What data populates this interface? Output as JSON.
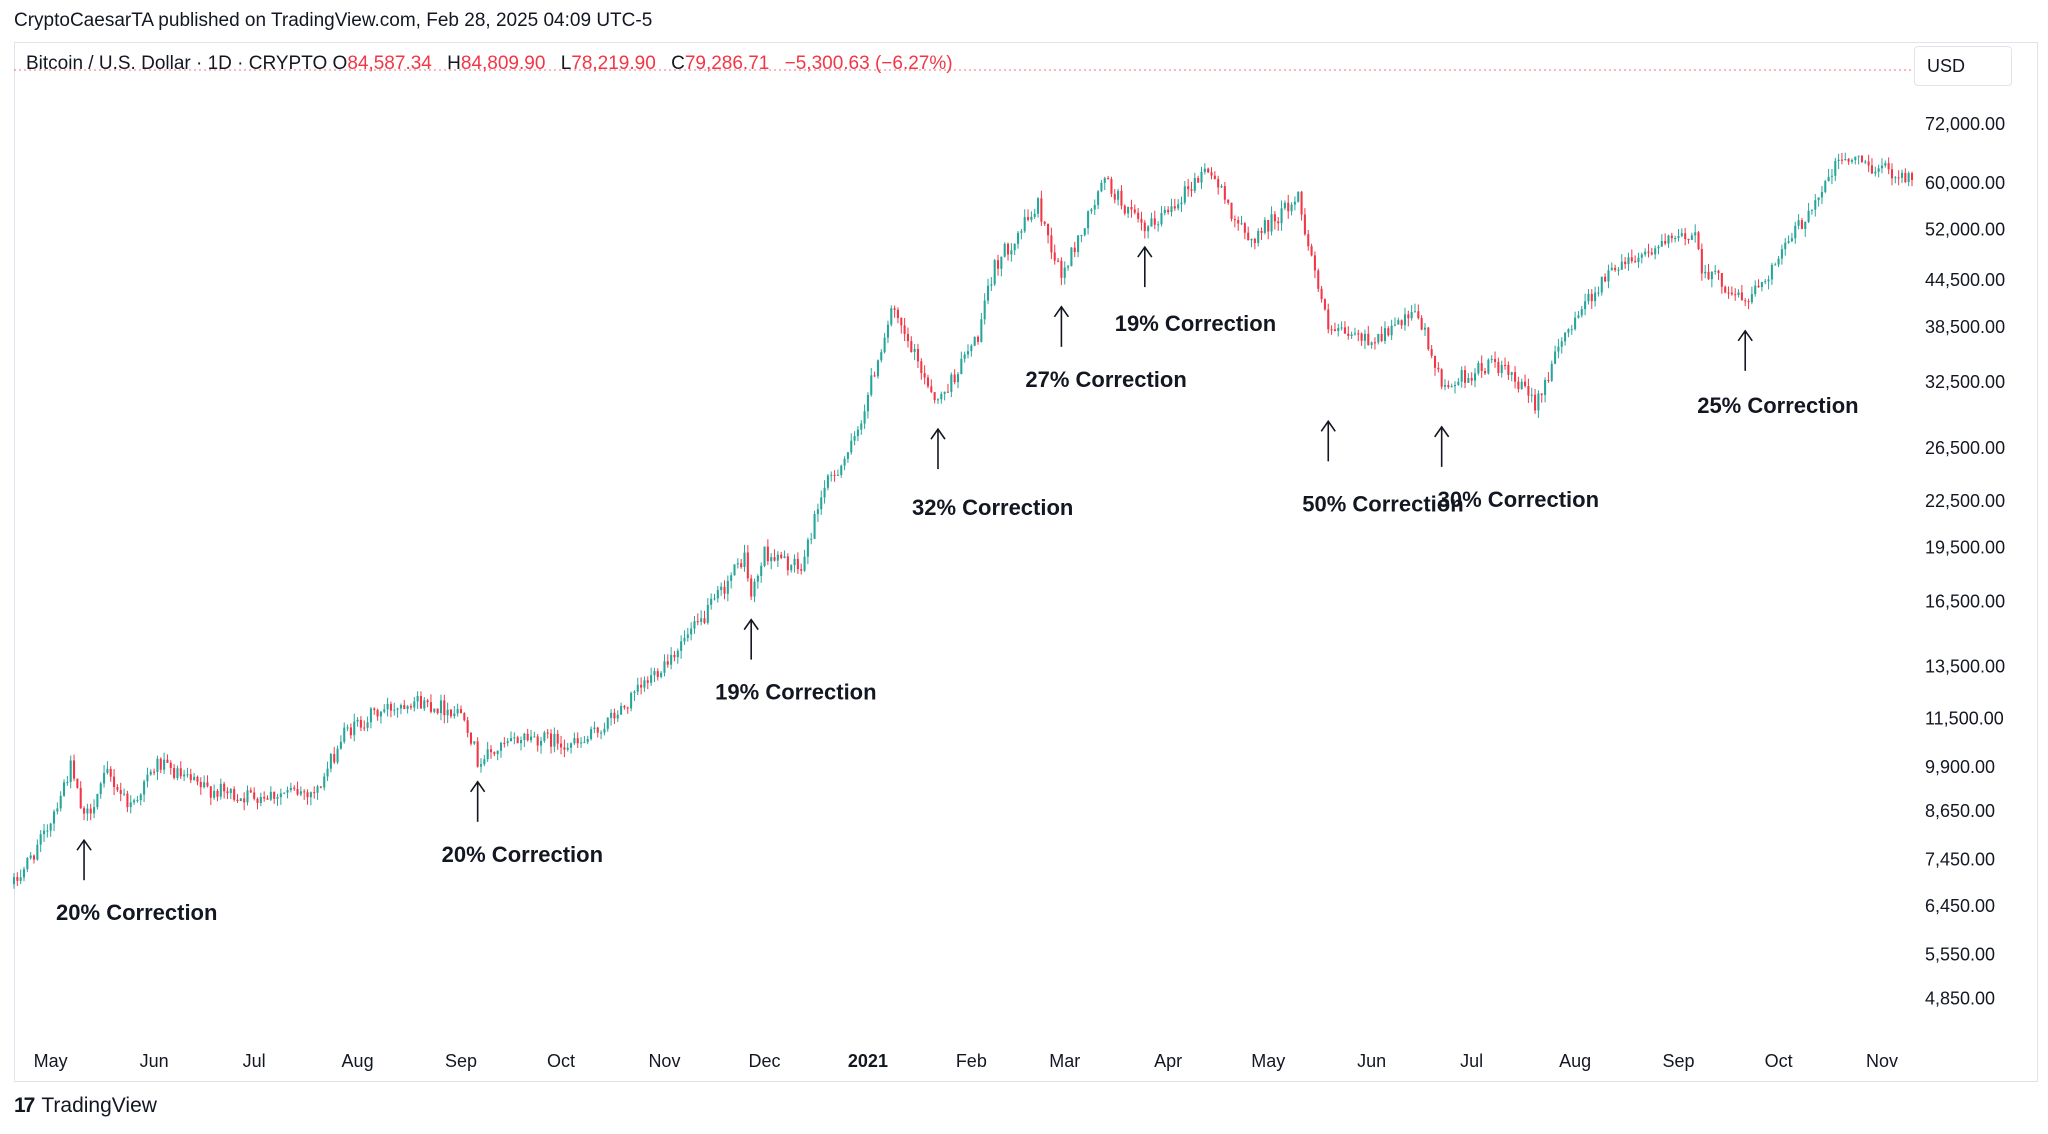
{
  "header": {
    "publisher": "CryptoCaesarTA published on TradingView.com, Feb 28, 2025 04:09 UTC-5",
    "symbol": "Bitcoin / U.S. Dollar · 1D · CRYPTO",
    "open_label": "O",
    "open": "84,587.34",
    "high_label": "H",
    "high": "84,809.90",
    "low_label": "L",
    "low": "78,219.90",
    "close_label": "C",
    "close": "79,286.71",
    "change": "−5,300.63 (−6.27%)",
    "currency": "USD"
  },
  "footer": {
    "logo_mark": "17",
    "logo_text": "TradingView"
  },
  "colors": {
    "up": "#26a69a",
    "down": "#f23645",
    "text": "#131722",
    "axis_text": "#131722",
    "border": "#e0e3eb"
  },
  "chart_data": {
    "type": "candlestick",
    "y_scale": "log",
    "ylim": [
      4400,
      80000
    ],
    "y_ticks": [
      {
        "value": 72000,
        "label": "72,000.00"
      },
      {
        "value": 60000,
        "label": "60,000.00"
      },
      {
        "value": 52000,
        "label": "52,000.00"
      },
      {
        "value": 44500,
        "label": "44,500.00"
      },
      {
        "value": 38500,
        "label": "38,500.00"
      },
      {
        "value": 32500,
        "label": "32,500.00"
      },
      {
        "value": 26500,
        "label": "26,500.00"
      },
      {
        "value": 22500,
        "label": "22,500.00"
      },
      {
        "value": 19500,
        "label": "19,500.00"
      },
      {
        "value": 16500,
        "label": "16,500.00"
      },
      {
        "value": 13500,
        "label": "13,500.00"
      },
      {
        "value": 11500,
        "label": "11,500.00"
      },
      {
        "value": 9900,
        "label": "9,900.00"
      },
      {
        "value": 8650,
        "label": "8,650.00"
      },
      {
        "value": 7450,
        "label": "7,450.00"
      },
      {
        "value": 6450,
        "label": "6,450.00"
      },
      {
        "value": 5550,
        "label": "5,550.00"
      },
      {
        "value": 4850,
        "label": "4,850.00"
      }
    ],
    "x_start": "2020-04-20",
    "x_end": "2021-11-10",
    "x_ticks": [
      {
        "date": "2020-05-01",
        "label": "May",
        "bold": false
      },
      {
        "date": "2020-06-01",
        "label": "Jun",
        "bold": false
      },
      {
        "date": "2020-07-01",
        "label": "Jul",
        "bold": false
      },
      {
        "date": "2020-08-01",
        "label": "Aug",
        "bold": false
      },
      {
        "date": "2020-09-01",
        "label": "Sep",
        "bold": false
      },
      {
        "date": "2020-10-01",
        "label": "Oct",
        "bold": false
      },
      {
        "date": "2020-11-01",
        "label": "Nov",
        "bold": false
      },
      {
        "date": "2020-12-01",
        "label": "Dec",
        "bold": false
      },
      {
        "date": "2021-01-01",
        "label": "2021",
        "bold": true
      },
      {
        "date": "2021-02-01",
        "label": "Feb",
        "bold": false
      },
      {
        "date": "2021-03-01",
        "label": "Mar",
        "bold": false
      },
      {
        "date": "2021-04-01",
        "label": "Apr",
        "bold": false
      },
      {
        "date": "2021-05-01",
        "label": "May",
        "bold": false
      },
      {
        "date": "2021-06-01",
        "label": "Jun",
        "bold": false
      },
      {
        "date": "2021-07-01",
        "label": "Jul",
        "bold": false
      },
      {
        "date": "2021-08-01",
        "label": "Aug",
        "bold": false
      },
      {
        "date": "2021-09-01",
        "label": "Sep",
        "bold": false
      },
      {
        "date": "2021-10-01",
        "label": "Oct",
        "bold": false
      },
      {
        "date": "2021-11-01",
        "label": "Nov",
        "bold": false
      }
    ],
    "price_path": [
      {
        "date": "2020-04-20",
        "price": 6900
      },
      {
        "date": "2020-04-29",
        "price": 8000
      },
      {
        "date": "2020-05-07",
        "price": 9900
      },
      {
        "date": "2020-05-11",
        "price": 8400
      },
      {
        "date": "2020-05-18",
        "price": 9700
      },
      {
        "date": "2020-05-25",
        "price": 8800
      },
      {
        "date": "2020-06-02",
        "price": 10000
      },
      {
        "date": "2020-06-15",
        "price": 9300
      },
      {
        "date": "2020-06-27",
        "price": 9050
      },
      {
        "date": "2020-07-20",
        "price": 9200
      },
      {
        "date": "2020-07-28",
        "price": 11000
      },
      {
        "date": "2020-08-05",
        "price": 11600
      },
      {
        "date": "2020-08-17",
        "price": 12200
      },
      {
        "date": "2020-09-02",
        "price": 11700
      },
      {
        "date": "2020-09-06",
        "price": 10100
      },
      {
        "date": "2020-09-20",
        "price": 10900
      },
      {
        "date": "2020-10-07",
        "price": 10600
      },
      {
        "date": "2020-10-20",
        "price": 11900
      },
      {
        "date": "2020-11-01",
        "price": 13700
      },
      {
        "date": "2020-11-12",
        "price": 15500
      },
      {
        "date": "2020-11-25",
        "price": 19000
      },
      {
        "date": "2020-11-27",
        "price": 16700
      },
      {
        "date": "2020-12-01",
        "price": 19200
      },
      {
        "date": "2020-12-12",
        "price": 18200
      },
      {
        "date": "2020-12-18",
        "price": 23000
      },
      {
        "date": "2020-12-28",
        "price": 27000
      },
      {
        "date": "2021-01-08",
        "price": 40500
      },
      {
        "date": "2021-01-22",
        "price": 30500
      },
      {
        "date": "2021-02-03",
        "price": 37500
      },
      {
        "date": "2021-02-08",
        "price": 46500
      },
      {
        "date": "2021-02-21",
        "price": 56000
      },
      {
        "date": "2021-02-28",
        "price": 45000
      },
      {
        "date": "2021-03-13",
        "price": 60500
      },
      {
        "date": "2021-03-25",
        "price": 51500
      },
      {
        "date": "2021-04-13",
        "price": 63000
      },
      {
        "date": "2021-04-25",
        "price": 50000
      },
      {
        "date": "2021-05-10",
        "price": 57500
      },
      {
        "date": "2021-05-19",
        "price": 38000
      },
      {
        "date": "2021-06-01",
        "price": 37000
      },
      {
        "date": "2021-06-15",
        "price": 40000
      },
      {
        "date": "2021-06-22",
        "price": 32000
      },
      {
        "date": "2021-07-08",
        "price": 34500
      },
      {
        "date": "2021-07-20",
        "price": 30500
      },
      {
        "date": "2021-08-01",
        "price": 40000
      },
      {
        "date": "2021-08-14",
        "price": 47000
      },
      {
        "date": "2021-09-06",
        "price": 51500
      },
      {
        "date": "2021-09-08",
        "price": 46500
      },
      {
        "date": "2021-09-21",
        "price": 41500
      },
      {
        "date": "2021-10-01",
        "price": 47500
      },
      {
        "date": "2021-10-20",
        "price": 65000
      },
      {
        "date": "2021-11-08",
        "price": 61500
      }
    ],
    "annotations": [
      {
        "date": "2020-05-11",
        "price": 8100,
        "text": "20% Correction",
        "text_dx": -28,
        "text_dy": 58
      },
      {
        "date": "2020-09-06",
        "price": 9700,
        "text": "20% Correction",
        "text_dx": -36,
        "text_dy": 58
      },
      {
        "date": "2020-11-27",
        "price": 16000,
        "text": "19% Correction",
        "text_dx": -36,
        "text_dy": 58
      },
      {
        "date": "2021-01-22",
        "price": 28800,
        "text": "32% Correction",
        "text_dx": -26,
        "text_dy": 64
      },
      {
        "date": "2021-02-28",
        "price": 42000,
        "text": "27% Correction",
        "text_dx": -36,
        "text_dy": 58
      },
      {
        "date": "2021-03-25",
        "price": 50500,
        "text": "19% Correction",
        "text_dx": -30,
        "text_dy": 62
      },
      {
        "date": "2021-05-19",
        "price": 29500,
        "text": "50% Correction",
        "text_dx": -26,
        "text_dy": 68
      },
      {
        "date": "2021-06-22",
        "price": 29000,
        "text": "30% Correction",
        "text_dx": -4,
        "text_dy": 58
      },
      {
        "date": "2021-09-21",
        "price": 39000,
        "text": "25% Correction",
        "text_dx": -48,
        "text_dy": 60
      }
    ]
  }
}
